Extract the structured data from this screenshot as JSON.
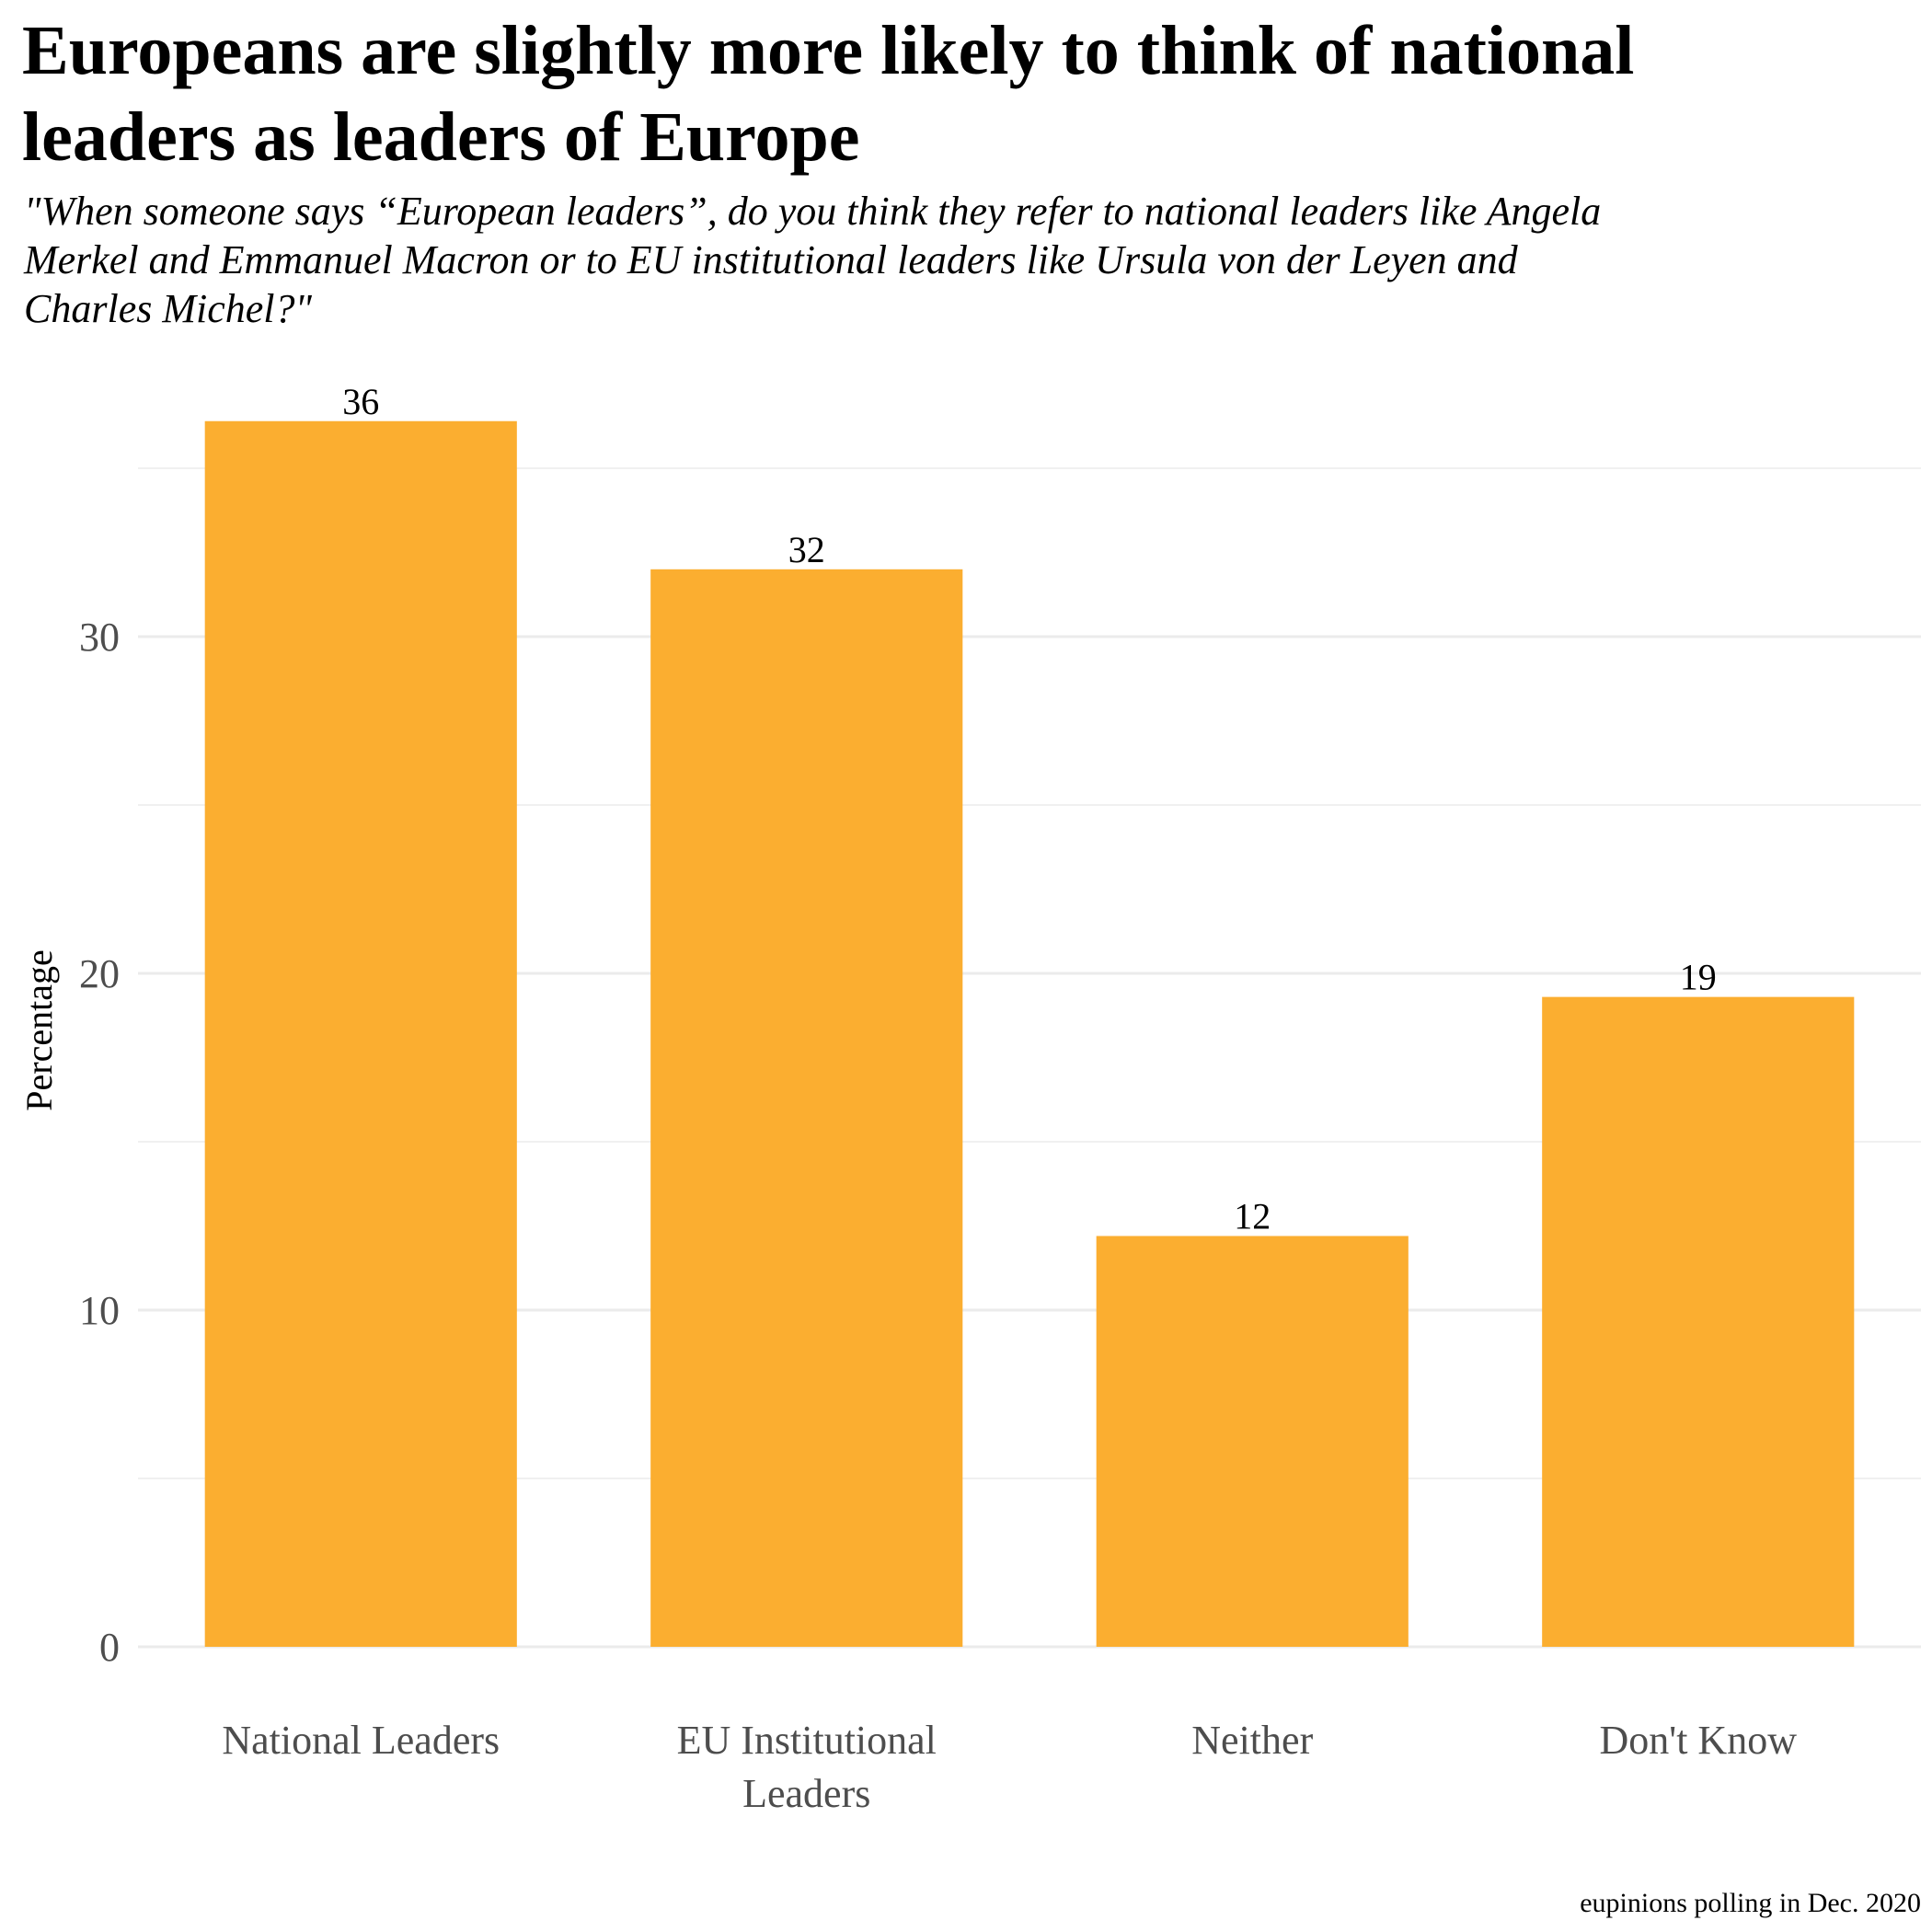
{
  "chart_data": {
    "type": "bar",
    "title_lines": [
      "Europeans are slightly more likely to think of national",
      " leaders as leaders of Europe"
    ],
    "subtitle_lines": [
      "\"When someone says “European leaders”, do you think they refer to national leaders like Angela",
      " Merkel and Emmanuel Macron or to EU institutional leaders like Ursula von der Leyen and",
      " Charles Michel?\""
    ],
    "categories": [
      [
        "National Leaders"
      ],
      [
        "EU Institutional",
        "Leaders"
      ],
      [
        "Neither"
      ],
      [
        "Don't Know"
      ]
    ],
    "values": [
      36.4,
      32,
      12.2,
      19.3
    ],
    "data_labels": [
      "36",
      "32",
      "12",
      "19"
    ],
    "xlabel": "",
    "ylabel": "Percentage",
    "ylim": [
      0,
      38.5
    ],
    "y_ticks": [
      0,
      10,
      20,
      30
    ],
    "y_tick_labels": [
      "0",
      "10",
      "20",
      "30"
    ],
    "y_minor_ticks": [
      5,
      15,
      25,
      35
    ],
    "grid": true,
    "legend": "none",
    "caption": "eupinions polling in Dec. 2020",
    "bar_color": "#fbae30"
  }
}
